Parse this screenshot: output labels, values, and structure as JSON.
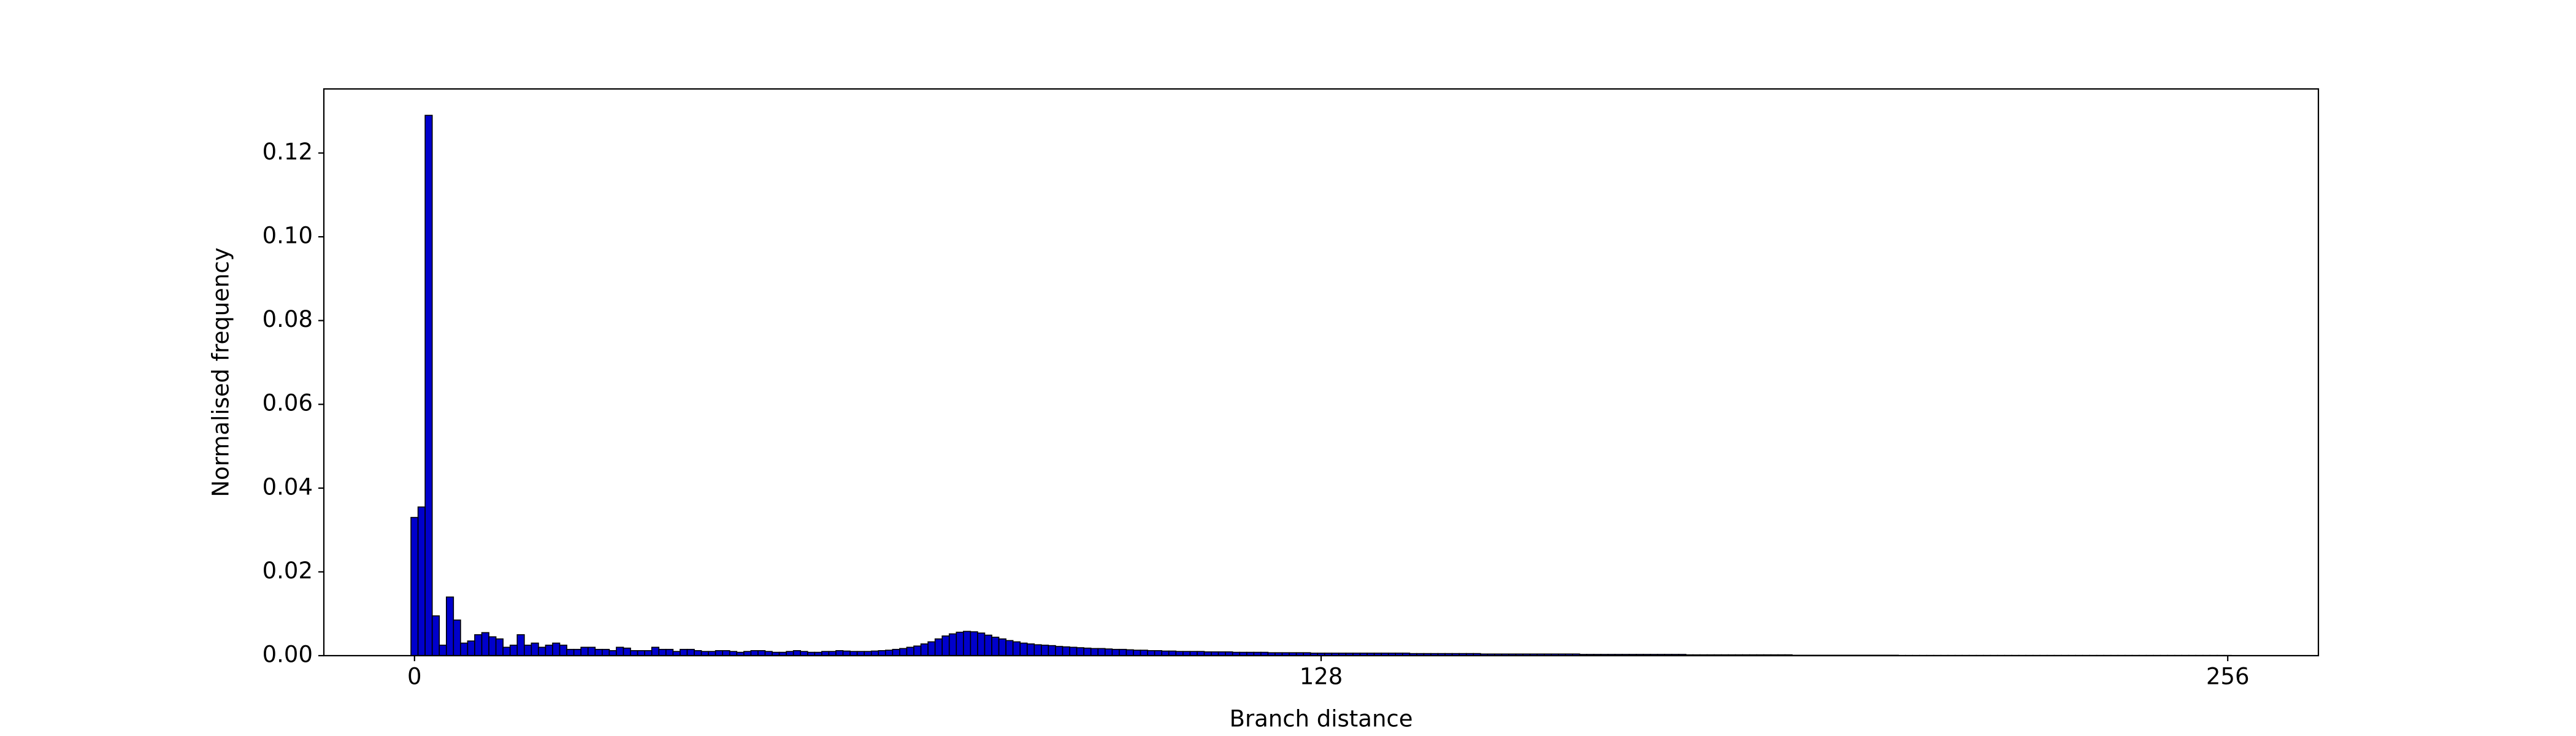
{
  "chart_data": {
    "type": "histogram",
    "xlabel": "Branch distance",
    "ylabel": "Normalised frequency",
    "color": "#0000cc",
    "edgecolor": "#000000",
    "xlim": [
      -12.8,
      268.8
    ],
    "ylim": [
      0,
      0.1353
    ],
    "xticks": [
      0,
      128,
      256
    ],
    "yticks": [
      {
        "value": 0,
        "label": "0.00"
      },
      {
        "value": 0.02,
        "label": "0.02"
      },
      {
        "value": 0.04,
        "label": "0.04"
      },
      {
        "value": 0.06,
        "label": "0.06"
      },
      {
        "value": 0.08,
        "label": "0.08"
      },
      {
        "value": 0.1,
        "label": "0.10"
      },
      {
        "value": 0.12,
        "label": "0.12"
      }
    ],
    "bins": [
      -0.5,
      0.5,
      1.5,
      2.5,
      3.5,
      4.5,
      5.5,
      6.5,
      7.5,
      8.5,
      9.5,
      10.5,
      11.5,
      12.5,
      13.5,
      14.5,
      15.5,
      16.5,
      17.5,
      18.5,
      19.5,
      20.5,
      21.5,
      22.5,
      23.5,
      24.5,
      25.5,
      26.5,
      27.5,
      28.5,
      29.5,
      30.5,
      31.5,
      32.5,
      33.5,
      34.5,
      35.5,
      36.5,
      37.5,
      38.5,
      39.5,
      40.5,
      41.5,
      42.5,
      43.5,
      44.5,
      45.5,
      46.5,
      47.5,
      48.5,
      49.5,
      50.5,
      51.5,
      52.5,
      53.5,
      54.5,
      55.5,
      56.5,
      57.5,
      58.5,
      59.5,
      60.5,
      61.5,
      62.5,
      63.5,
      64.5,
      65.5,
      66.5,
      67.5,
      68.5,
      69.5,
      70.5,
      71.5,
      72.5,
      73.5,
      74.5,
      75.5,
      76.5,
      77.5,
      78.5,
      79.5,
      80.5,
      81.5,
      82.5,
      83.5,
      84.5,
      85.5,
      86.5,
      87.5,
      88.5,
      89.5,
      90.5,
      91.5,
      92.5,
      93.5,
      94.5,
      95.5,
      96.5,
      97.5,
      98.5,
      99.5,
      100.5,
      101.5,
      102.5,
      103.5,
      104.5,
      105.5,
      106.5,
      107.5,
      108.5,
      109.5,
      110.5,
      111.5,
      112.5,
      113.5,
      114.5,
      115.5,
      116.5,
      117.5,
      118.5,
      119.5,
      120.5,
      121.5,
      122.5,
      123.5,
      124.5,
      125.5,
      126.5,
      127.5,
      128.5,
      129.5,
      130.5,
      131.5,
      132.5,
      133.5,
      134.5,
      135.5,
      136.5,
      137.5,
      138.5,
      139.5,
      140.5,
      141.5,
      142.5,
      143.5,
      144.5,
      145.5,
      146.5,
      147.5,
      148.5,
      149.5,
      150.5,
      151.5,
      152.5,
      153.5,
      154.5,
      155.5,
      156.5,
      157.5,
      158.5,
      159.5,
      160.5,
      161.5,
      162.5,
      163.5,
      164.5,
      165.5,
      166.5,
      167.5,
      168.5,
      169.5,
      170.5,
      171.5,
      172.5,
      173.5,
      174.5,
      175.5,
      176.5,
      177.5,
      178.5,
      179.5,
      180.5,
      181.5,
      182.5,
      183.5,
      184.5,
      185.5,
      186.5,
      187.5,
      188.5,
      189.5,
      190.5,
      191.5,
      192.5,
      193.5,
      194.5,
      195.5,
      196.5,
      197.5,
      198.5,
      199.5,
      200.5,
      201.5,
      202.5,
      203.5,
      204.5,
      205.5,
      206.5,
      207.5,
      208.5,
      209.5,
      210.5,
      211.5,
      212.5,
      213.5,
      214.5,
      215.5,
      216.5,
      217.5,
      218.5,
      219.5,
      220.5,
      221.5,
      222.5,
      223.5,
      224.5,
      225.5,
      226.5,
      227.5,
      228.5,
      229.5,
      230.5,
      231.5,
      232.5,
      233.5,
      234.5,
      235.5,
      236.5,
      237.5,
      238.5,
      239.5,
      240.5,
      241.5,
      242.5,
      243.5,
      244.5,
      245.5,
      246.5,
      247.5,
      248.5,
      249.5,
      250.5,
      251.5,
      252.5,
      253.5,
      254.5,
      255.5,
      256.5
    ],
    "values": [
      0.033,
      0.0355,
      0.129,
      0.0095,
      0.0025,
      0.014,
      0.0085,
      0.003,
      0.0035,
      0.005,
      0.0055,
      0.0045,
      0.004,
      0.002,
      0.0025,
      0.005,
      0.0025,
      0.003,
      0.002,
      0.0025,
      0.003,
      0.0025,
      0.0015,
      0.0015,
      0.002,
      0.002,
      0.0015,
      0.0015,
      0.0012,
      0.002,
      0.0018,
      0.0012,
      0.0012,
      0.0012,
      0.002,
      0.0015,
      0.0015,
      0.001,
      0.0015,
      0.0015,
      0.0012,
      0.001,
      0.001,
      0.0012,
      0.0012,
      0.001,
      0.0008,
      0.001,
      0.0012,
      0.0012,
      0.001,
      0.0008,
      0.0008,
      0.001,
      0.0012,
      0.001,
      0.0008,
      0.0008,
      0.001,
      0.001,
      0.0012,
      0.0011,
      0.001,
      0.001,
      0.001,
      0.0011,
      0.0012,
      0.0013,
      0.0015,
      0.0017,
      0.002,
      0.0023,
      0.0028,
      0.0033,
      0.004,
      0.0047,
      0.0052,
      0.0056,
      0.0058,
      0.0057,
      0.0054,
      0.0049,
      0.0044,
      0.004,
      0.0036,
      0.0033,
      0.003,
      0.0028,
      0.0026,
      0.0025,
      0.0024,
      0.0022,
      0.0021,
      0.002,
      0.0019,
      0.0018,
      0.0017,
      0.0017,
      0.0016,
      0.0015,
      0.0015,
      0.0014,
      0.0013,
      0.0013,
      0.0012,
      0.0012,
      0.0011,
      0.0011,
      0.001,
      0.001,
      0.001,
      0.001,
      0.0009,
      0.0009,
      0.0009,
      0.0009,
      0.0008,
      0.0008,
      0.0008,
      0.0008,
      0.0008,
      0.0007,
      0.0007,
      0.0007,
      0.0007,
      0.0007,
      0.0007,
      0.0006,
      0.0006,
      0.0006,
      0.0006,
      0.0006,
      0.0006,
      0.0006,
      0.0006,
      0.0006,
      0.0006,
      0.0006,
      0.0006,
      0.0006,
      0.0006,
      0.0005,
      0.0005,
      0.0005,
      0.0005,
      0.0005,
      0.0005,
      0.0005,
      0.0005,
      0.0005,
      0.0005,
      0.0004,
      0.0004,
      0.0004,
      0.0004,
      0.0004,
      0.0004,
      0.0004,
      0.0004,
      0.0004,
      0.0004,
      0.0004,
      0.0004,
      0.0004,
      0.0004,
      0.0003,
      0.0003,
      0.0003,
      0.0003,
      0.0003,
      0.0003,
      0.0003,
      0.0003,
      0.0003,
      0.0003,
      0.0003,
      0.0003,
      0.0003,
      0.0003,
      0.0003,
      0.0002,
      0.0002,
      0.0002,
      0.0002,
      0.0002,
      0.0002,
      0.0002,
      0.0002,
      0.0002,
      0.0002,
      0.0002,
      0.0002,
      0.0002,
      0.0002,
      0.0002,
      0.0001,
      0.0001,
      0.0001,
      0.0001,
      0.0001,
      0.0001,
      0.0001,
      0.0001,
      0.0001,
      0.0001,
      0.0001,
      0.0001,
      0.0001,
      0.0001,
      0.0001,
      5e-05,
      5e-05,
      5e-05,
      5e-05,
      5e-05,
      5e-05,
      5e-05,
      5e-05,
      5e-05,
      5e-05,
      5e-05,
      5e-05,
      5e-05,
      5e-05,
      5e-05,
      5e-05,
      5e-05,
      5e-05,
      5e-05,
      5e-05,
      5e-05,
      5e-05,
      5e-05,
      5e-05,
      5e-05,
      5e-05,
      5e-05,
      5e-05,
      5e-05,
      5e-05,
      5e-05,
      5e-05,
      5e-05,
      5e-05,
      5e-05,
      5e-05,
      5e-05,
      5e-05,
      5e-05,
      5e-05,
      5e-05,
      5e-05,
      5e-05,
      5e-05,
      5e-05,
      5e-05,
      5e-05
    ]
  }
}
